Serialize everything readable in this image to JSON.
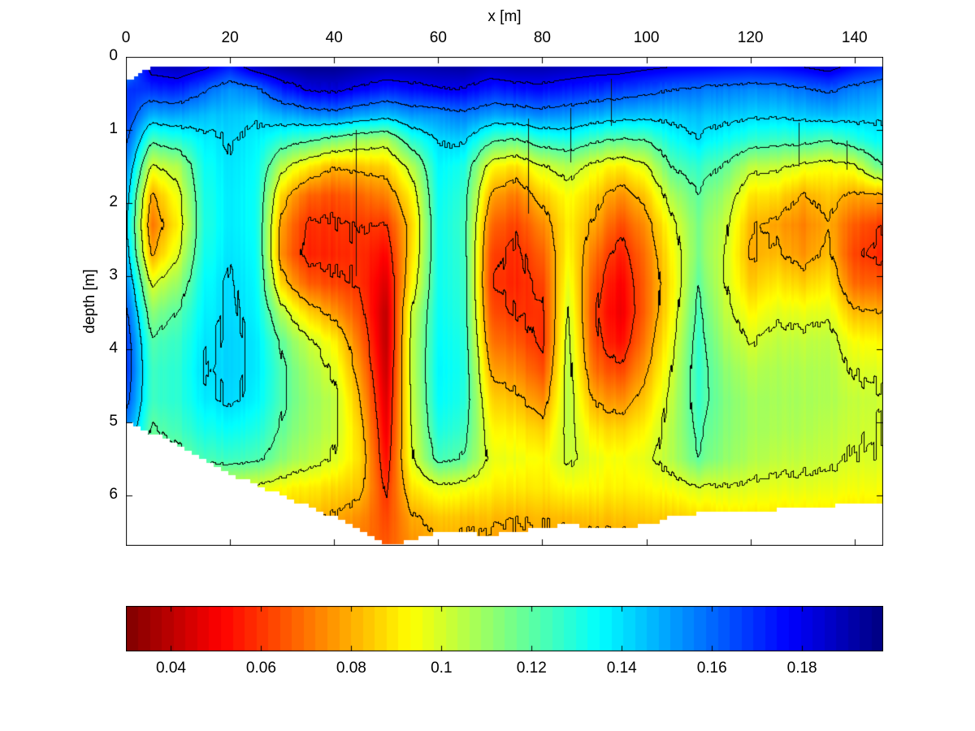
{
  "figure": {
    "background_color": "#ffffff",
    "axis_color": "#000000",
    "contour_color": "#000000",
    "no_data_color": "#ffffff"
  },
  "chart_data": {
    "type": "heatmap",
    "title": "",
    "xlabel": "x [m]",
    "ylabel": "depth [m]",
    "colormap": "jet-reversed",
    "x_axis": {
      "label": "x [m]",
      "range": [
        0,
        145.5
      ],
      "tick_values": [
        0,
        20,
        40,
        60,
        80,
        100,
        120,
        140
      ],
      "tick_labels": [
        "0",
        "20",
        "40",
        "60",
        "80",
        "100",
        "120",
        "140"
      ]
    },
    "y_axis": {
      "label": "depth [m]",
      "range": [
        0,
        6.69
      ],
      "tick_values": [
        0,
        1,
        2,
        3,
        4,
        5,
        6
      ],
      "tick_labels": [
        "0",
        "1",
        "2",
        "3",
        "4",
        "5",
        "6"
      ]
    },
    "colorbar": {
      "orientation": "horizontal",
      "vmin": 0.03,
      "vmax": 0.198,
      "segments": 64,
      "tick_values": [
        0.04,
        0.06,
        0.08,
        0.1,
        0.12,
        0.14,
        0.16,
        0.18
      ],
      "tick_labels": [
        "0.04",
        "0.06",
        "0.08",
        "0.1",
        "0.12",
        "0.14",
        "0.16",
        "0.18"
      ]
    },
    "contour_levels": [
      0.06,
      0.08,
      0.1,
      0.12,
      0.14,
      0.16,
      0.18
    ],
    "grid": {
      "x_values": [
        0,
        5,
        10,
        15,
        20,
        25,
        30,
        35,
        40,
        45,
        50,
        55,
        60,
        65,
        70,
        75,
        80,
        85,
        90,
        95,
        100,
        105,
        110,
        115,
        120,
        125,
        130,
        135,
        140,
        145
      ],
      "depth_values": [
        0.15,
        0.45,
        0.8,
        1.15,
        1.5,
        1.9,
        2.3,
        2.7,
        3.1,
        3.5,
        3.9,
        4.3,
        4.7,
        5.1,
        5.5,
        5.9,
        6.3,
        6.69
      ],
      "values": [
        [
          0.15,
          0.168,
          0.168,
          0.163,
          0.155,
          0.148,
          0.144,
          0.148,
          0.156,
          0.164,
          0.169,
          0.17,
          0.165,
          0.155,
          0.1185,
          0.0985,
          0.092,
          0.088
        ],
        [
          0.185,
          0.17,
          0.148,
          0.122,
          0.0985,
          0.078,
          0.07,
          0.0782,
          0.098,
          0.112,
          0.1215,
          0.125,
          0.125,
          0.1185,
          0.112,
          0.095,
          0.085,
          0.0795
        ],
        [
          0.188,
          0.172,
          0.15,
          0.128,
          0.106,
          0.096,
          0.091,
          0.0985,
          0.11,
          0.1205,
          0.126,
          0.128,
          0.128,
          0.124,
          0.116,
          0.095,
          0.085,
          0.0795
        ],
        [
          0.182,
          0.162,
          0.146,
          0.137,
          0.133,
          0.131,
          0.13,
          0.132,
          0.135,
          0.137,
          0.139,
          0.1405,
          0.138,
          0.132,
          0.124,
          0.098,
          0.087,
          0.0795
        ],
        [
          0.172,
          0.152,
          0.144,
          0.1405,
          0.139,
          0.138,
          0.138,
          0.139,
          0.1408,
          0.141,
          0.142,
          0.142,
          0.1412,
          0.134,
          0.125,
          0.099,
          0.087,
          0.0795
        ],
        [
          0.186,
          0.157,
          0.142,
          0.137,
          0.135,
          0.134,
          0.134,
          0.135,
          0.136,
          0.137,
          0.139,
          0.139,
          0.137,
          0.131,
          0.123,
          0.097,
          0.086,
          0.0795
        ],
        [
          0.192,
          0.172,
          0.148,
          0.127,
          0.104,
          0.085,
          0.076,
          0.073,
          0.085,
          0.105,
          0.118,
          0.122,
          0.122,
          0.118,
          0.112,
          0.093,
          0.084,
          0.079
        ],
        [
          0.195,
          0.181,
          0.152,
          0.121,
          0.09,
          0.067,
          0.058,
          0.056,
          0.066,
          0.086,
          0.102,
          0.108,
          0.11,
          0.109,
          0.105,
          0.09,
          0.082,
          0.078
        ],
        [
          0.195,
          0.183,
          0.155,
          0.114,
          0.081,
          0.064,
          0.059,
          0.057,
          0.062,
          0.076,
          0.092,
          0.0985,
          0.104,
          0.103,
          0.099,
          0.087,
          0.079,
          0.076
        ],
        [
          0.192,
          0.178,
          0.15,
          0.109,
          0.084,
          0.068,
          0.061,
          0.059,
          0.0595,
          0.064,
          0.07,
          0.076,
          0.081,
          0.086,
          0.088,
          0.084,
          0.075,
          0.071
        ],
        [
          0.19,
          0.172,
          0.145,
          0.105,
          0.085,
          0.072,
          0.0592,
          0.051,
          0.045,
          0.04,
          0.04,
          0.042,
          0.045,
          0.048,
          0.052,
          0.058,
          0.062,
          0.065
        ],
        [
          0.19,
          0.176,
          0.152,
          0.128,
          0.105,
          0.092,
          0.086,
          0.088,
          0.092,
          0.1015,
          0.1035,
          0.1035,
          0.1025,
          0.1005,
          0.0985,
          0.089,
          0.079,
          0.075
        ],
        [
          0.191,
          0.179,
          0.153,
          0.1405,
          0.136,
          0.134,
          0.133,
          0.133,
          0.133,
          0.134,
          0.135,
          0.136,
          0.135,
          0.131,
          0.124,
          0.097,
          0.084,
          0.079
        ],
        [
          0.192,
          0.1795,
          0.157,
          0.142,
          0.131,
          0.127,
          0.125,
          0.126,
          0.127,
          0.128,
          0.13,
          0.131,
          0.13,
          0.126,
          0.119,
          0.095,
          0.083,
          0.078
        ],
        [
          0.188,
          0.172,
          0.15,
          0.122,
          0.094,
          0.079,
          0.069,
          0.063,
          0.061,
          0.065,
          0.071,
          0.079,
          0.087,
          0.093,
          0.097,
          0.091,
          0.082,
          0.077
        ],
        [
          0.19,
          0.175,
          0.152,
          0.118,
          0.088,
          0.071,
          0.062,
          0.058,
          0.057,
          0.0595,
          0.066,
          0.074,
          0.083,
          0.091,
          0.096,
          0.09,
          0.081,
          0.077
        ],
        [
          0.19,
          0.176,
          0.154,
          0.127,
          0.099,
          0.084,
          0.073,
          0.066,
          0.061,
          0.058,
          0.057,
          0.063,
          0.073,
          0.084,
          0.092,
          0.089,
          0.081,
          0.077
        ],
        [
          0.188,
          0.173,
          0.152,
          0.13,
          0.106,
          0.094,
          0.091,
          0.093,
          0.097,
          0.101,
          0.104,
          0.105,
          0.105,
          0.104,
          0.102,
          0.093,
          0.082,
          0.077
        ],
        [
          0.186,
          0.17,
          0.148,
          0.122,
          0.096,
          0.085,
          0.078,
          0.07,
          0.064,
          0.061,
          0.063,
          0.069,
          0.079,
          0.089,
          0.096,
          0.092,
          0.083,
          0.077
        ],
        [
          0.185,
          0.168,
          0.146,
          0.118,
          0.09,
          0.074,
          0.063,
          0.055,
          0.05,
          0.048,
          0.052,
          0.062,
          0.074,
          0.086,
          0.094,
          0.091,
          0.083,
          0.077
        ],
        [
          0.182,
          0.164,
          0.144,
          0.1195,
          0.098,
          0.084,
          0.075,
          0.07,
          0.068,
          0.068,
          0.072,
          0.078,
          0.085,
          0.092,
          0.097,
          0.092,
          0.084,
          0.077
        ],
        [
          0.1795,
          0.1605,
          0.144,
          0.133,
          0.121,
          0.107,
          0.097,
          0.093,
          0.091,
          0.093,
          0.097,
          0.101,
          0.104,
          0.106,
          0.106,
          0.095,
          0.085,
          0.077
        ],
        [
          0.178,
          0.158,
          0.146,
          0.139,
          0.127,
          0.119,
          0.115,
          0.115,
          0.119,
          0.123,
          0.126,
          0.127,
          0.126,
          0.123,
          0.119,
          0.099,
          0.087,
          0.077
        ],
        [
          0.176,
          0.156,
          0.144,
          0.133,
          0.119,
          0.109,
          0.103,
          0.101,
          0.101,
          0.104,
          0.108,
          0.112,
          0.114,
          0.113,
          0.111,
          0.099,
          0.089,
          0.079
        ],
        [
          0.175,
          0.154,
          0.142,
          0.127,
          0.104,
          0.089,
          0.081,
          0.079,
          0.084,
          0.092,
          0.0995,
          0.105,
          0.108,
          0.108,
          0.106,
          0.098,
          0.089,
          0.079
        ],
        [
          0.176,
          0.155,
          0.142,
          0.125,
          0.103,
          0.088,
          0.078,
          0.082,
          0.09,
          0.098,
          0.104,
          0.107,
          0.108,
          0.107,
          0.104,
          0.097,
          0.089,
          0.079
        ],
        [
          0.1795,
          0.158,
          0.144,
          0.124,
          0.097,
          0.079,
          0.072,
          0.075,
          0.085,
          0.096,
          0.103,
          0.106,
          0.107,
          0.106,
          0.103,
          0.097,
          0.089,
          0.079
        ],
        [
          0.184,
          0.162,
          0.146,
          0.1195,
          0.094,
          0.084,
          0.079,
          0.082,
          0.09,
          0.098,
          0.104,
          0.106,
          0.106,
          0.104,
          0.102,
          0.096,
          0.089,
          0.079
        ],
        [
          0.175,
          0.156,
          0.145,
          0.128,
          0.098,
          0.078,
          0.066,
          0.062,
          0.068,
          0.082,
          0.094,
          0.0995,
          0.103,
          0.102,
          0.0995,
          0.095,
          0.088,
          0.079
        ],
        [
          0.17,
          0.152,
          0.142,
          0.135,
          0.118,
          0.078,
          0.0605,
          0.057,
          0.066,
          0.08,
          0.092,
          0.098,
          0.101,
          0.0995,
          0.099,
          0.094,
          0.088,
          0.079
        ]
      ]
    },
    "no_data_envelope": {
      "top_depth": [
        0.34,
        0.14,
        0.12,
        0.12,
        0.12,
        0.12,
        0.12,
        0.12,
        0.12,
        0.12,
        0.12,
        0.12,
        0.12,
        0.12,
        0.12,
        0.12,
        0.12,
        0.12,
        0.12,
        0.12,
        0.12,
        0.12,
        0.12,
        0.12,
        0.12,
        0.12,
        0.12,
        0.12,
        0.12,
        0.12
      ],
      "bottom_depth": [
        4.95,
        5.15,
        5.3,
        5.5,
        5.7,
        5.85,
        6.0,
        6.15,
        6.3,
        6.5,
        6.69,
        6.6,
        6.5,
        6.5,
        6.55,
        6.5,
        6.45,
        6.4,
        6.45,
        6.45,
        6.4,
        6.3,
        6.25,
        6.2,
        6.2,
        6.2,
        6.15,
        6.15,
        6.1,
        6.1
      ]
    },
    "hairline_artifacts": [
      {
        "x": 44.2,
        "d0": 1.0,
        "d1": 3.0
      },
      {
        "x": 77.3,
        "d0": 0.85,
        "d1": 2.15
      },
      {
        "x": 85.4,
        "d0": 0.7,
        "d1": 1.45
      },
      {
        "x": 93.2,
        "d0": 0.3,
        "d1": 0.95
      },
      {
        "x": 129.3,
        "d0": 0.9,
        "d1": 1.5
      },
      {
        "x": 138.4,
        "d0": 1.15,
        "d1": 1.55
      }
    ]
  }
}
